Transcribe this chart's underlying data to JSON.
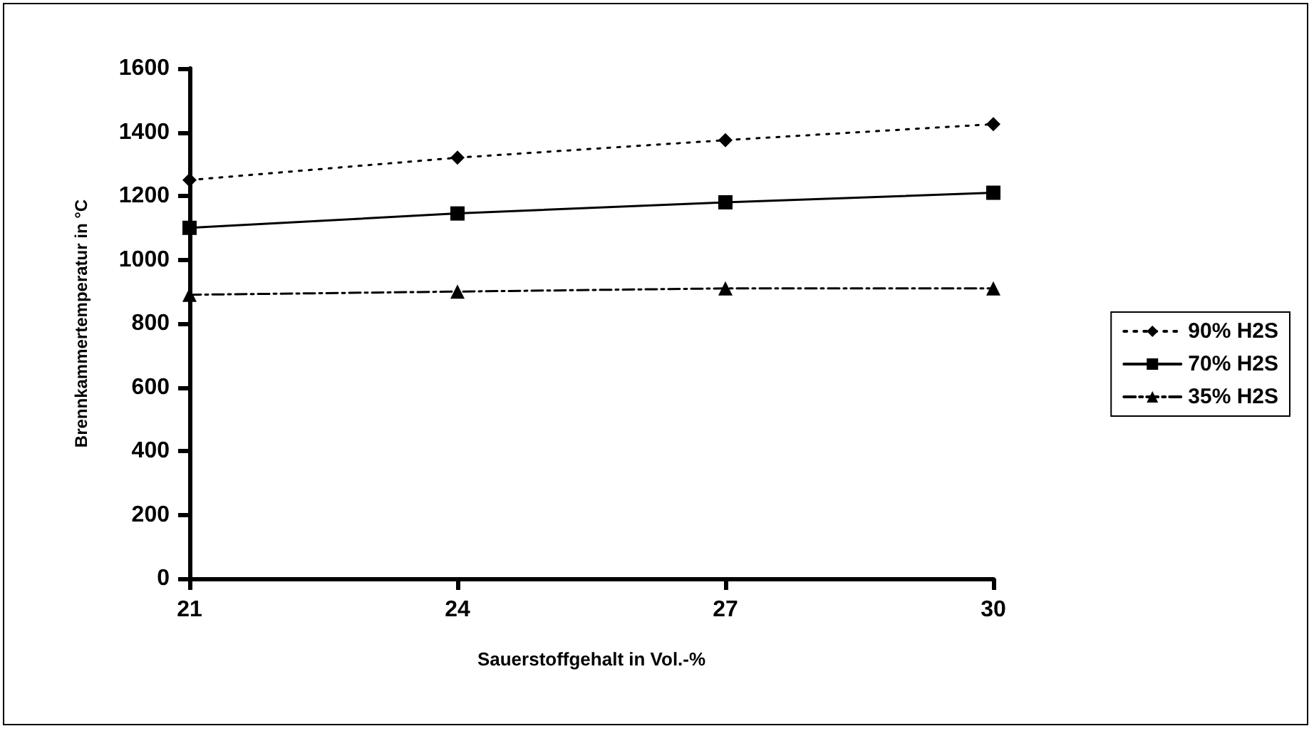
{
  "chart_data": {
    "type": "line",
    "xlabel": "Sauerstoffgehalt in Vol.-%",
    "ylabel": "Brennkammertemperatur in °C",
    "categories": [
      "21",
      "24",
      "27",
      "30"
    ],
    "series": [
      {
        "name": "90% H2S",
        "color": "#000000",
        "marker": "diamond",
        "line_style": "dotted",
        "values": [
          1250,
          1320,
          1375,
          1425
        ]
      },
      {
        "name": "70% H2S",
        "color": "#000000",
        "marker": "square",
        "line_style": "solid",
        "values": [
          1100,
          1145,
          1180,
          1210
        ]
      },
      {
        "name": "35% H2S",
        "color": "#000000",
        "marker": "triangle",
        "line_style": "dashed",
        "values": [
          890,
          900,
          910,
          910
        ]
      }
    ],
    "ylim": [
      0,
      1600
    ],
    "yticks": [
      0,
      200,
      400,
      600,
      800,
      1000,
      1200,
      1400,
      1600
    ],
    "grid": false,
    "legend": "right"
  }
}
